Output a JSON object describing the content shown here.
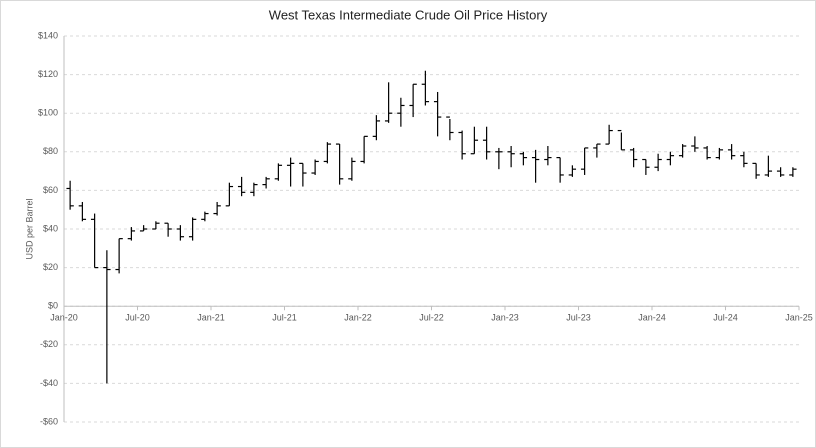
{
  "chart_data": {
    "type": "ohlc",
    "title": "West Texas Intermediate Crude Oil Price History",
    "y_label": "USD per Barrel",
    "x": [
      "2020-01",
      "2020-02",
      "2020-03",
      "2020-04",
      "2020-05",
      "2020-06",
      "2020-07",
      "2020-08",
      "2020-09",
      "2020-10",
      "2020-11",
      "2020-12",
      "2021-01",
      "2021-02",
      "2021-03",
      "2021-04",
      "2021-05",
      "2021-06",
      "2021-07",
      "2021-08",
      "2021-09",
      "2021-10",
      "2021-11",
      "2021-12",
      "2022-01",
      "2022-02",
      "2022-03",
      "2022-04",
      "2022-05",
      "2022-06",
      "2022-07",
      "2022-08",
      "2022-09",
      "2022-10",
      "2022-11",
      "2022-12",
      "2023-01",
      "2023-02",
      "2023-03",
      "2023-04",
      "2023-05",
      "2023-06",
      "2023-07",
      "2023-08",
      "2023-09",
      "2023-10",
      "2023-11",
      "2023-12",
      "2024-01",
      "2024-02",
      "2024-03",
      "2024-04",
      "2024-05",
      "2024-06",
      "2024-07",
      "2024-08",
      "2024-09",
      "2024-10",
      "2024-11",
      "2024-12"
    ],
    "series": [
      {
        "name": "WTI",
        "color": "#000000",
        "open": [
          61,
          52,
          45,
          20,
          19,
          35,
          39,
          40,
          43,
          40,
          36,
          45,
          48,
          52,
          62,
          59,
          63,
          66,
          73,
          74,
          69,
          75,
          84,
          66,
          75,
          88,
          96,
          100,
          104,
          115,
          106,
          98,
          90,
          79,
          86,
          80,
          80,
          79,
          77,
          76,
          77,
          68,
          71,
          82,
          84,
          91,
          81,
          76,
          72,
          76,
          78,
          83,
          82,
          77,
          81,
          78,
          74,
          68,
          70,
          68
        ],
        "high": [
          65,
          54,
          48,
          29,
          35,
          41,
          42,
          44,
          43,
          42,
          46,
          49,
          54,
          64,
          67,
          64,
          67,
          74,
          77,
          74,
          76,
          85,
          84,
          77,
          88,
          99,
          116,
          108,
          115,
          122,
          111,
          97,
          91,
          93,
          93,
          82,
          83,
          80,
          81,
          83,
          77,
          73,
          82,
          84,
          94,
          90,
          82,
          76,
          79,
          80,
          84,
          88,
          83,
          82,
          84,
          80,
          74,
          78,
          72,
          72
        ],
        "low": [
          50,
          44,
          20,
          -40,
          17,
          34,
          39,
          40,
          36,
          34,
          34,
          44,
          47,
          52,
          57,
          57,
          61,
          65,
          62,
          62,
          68,
          74,
          63,
          65,
          74,
          86,
          95,
          93,
          98,
          104,
          88,
          86,
          76,
          79,
          76,
          71,
          72,
          73,
          64,
          73,
          64,
          67,
          68,
          77,
          84,
          81,
          72,
          68,
          70,
          73,
          77,
          80,
          76,
          76,
          76,
          72,
          66,
          67,
          67,
          67
        ],
        "close": [
          52,
          45,
          20,
          19,
          35,
          39,
          40,
          43,
          40,
          36,
          45,
          48,
          52,
          62,
          59,
          63,
          66,
          73,
          74,
          69,
          75,
          84,
          66,
          75,
          88,
          96,
          100,
          104,
          115,
          106,
          98,
          90,
          79,
          86,
          80,
          80,
          79,
          77,
          76,
          77,
          68,
          71,
          82,
          84,
          91,
          81,
          76,
          72,
          76,
          78,
          83,
          82,
          77,
          81,
          78,
          74,
          68,
          70,
          68,
          71
        ]
      }
    ],
    "xlim": [
      "2020-01",
      "2025-01"
    ],
    "xticks": [
      {
        "value": "2020-01",
        "label": "Jan-20"
      },
      {
        "value": "2020-07",
        "label": "Jul-20"
      },
      {
        "value": "2021-01",
        "label": "Jan-21"
      },
      {
        "value": "2021-07",
        "label": "Jul-21"
      },
      {
        "value": "2022-01",
        "label": "Jan-22"
      },
      {
        "value": "2022-07",
        "label": "Jul-22"
      },
      {
        "value": "2023-01",
        "label": "Jan-23"
      },
      {
        "value": "2023-07",
        "label": "Jul-23"
      },
      {
        "value": "2024-01",
        "label": "Jan-24"
      },
      {
        "value": "2024-07",
        "label": "Jul-24"
      },
      {
        "value": "2025-01",
        "label": "Jan-25"
      }
    ],
    "ylim": [
      -60,
      140
    ],
    "yticks": [
      {
        "value": -60,
        "label": "-$60"
      },
      {
        "value": -40,
        "label": "-$40"
      },
      {
        "value": -20,
        "label": "-$20"
      },
      {
        "value": 0,
        "label": "$0"
      },
      {
        "value": 20,
        "label": "$20"
      },
      {
        "value": 40,
        "label": "$40"
      },
      {
        "value": 60,
        "label": "$60"
      },
      {
        "value": 80,
        "label": "$80"
      },
      {
        "value": 100,
        "label": "$100"
      },
      {
        "value": 120,
        "label": "$120"
      },
      {
        "value": 140,
        "label": "$140"
      }
    ],
    "grid": true
  }
}
